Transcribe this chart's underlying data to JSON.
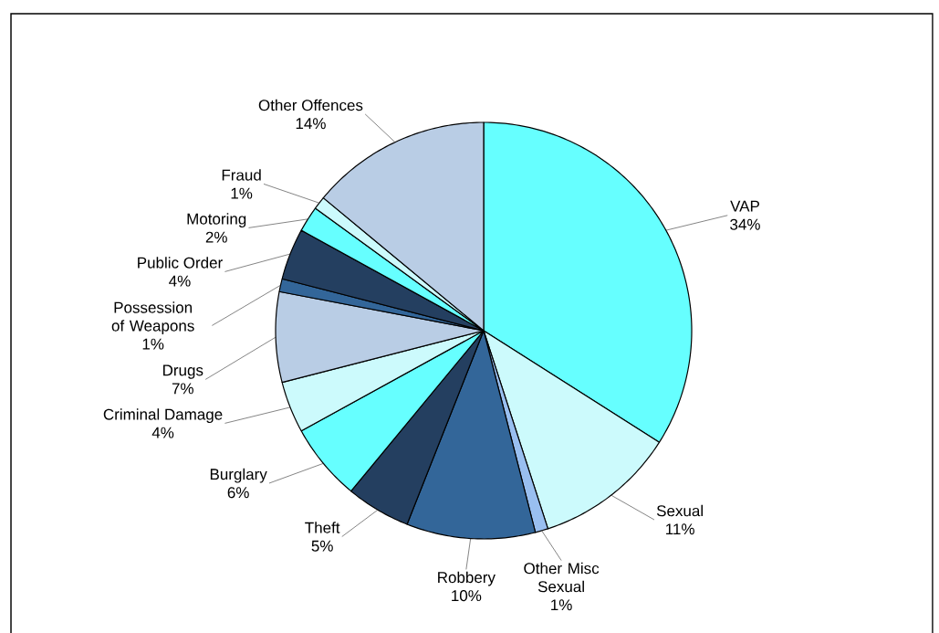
{
  "chart_data": {
    "type": "pie",
    "categories": [
      "VAP",
      "Sexual",
      "Other Misc Sexual",
      "Robbery",
      "Theft",
      "Burglary",
      "Criminal Damage",
      "Drugs",
      "Possession of Weapons",
      "Public Order",
      "Motoring",
      "Fraud",
      "Other Offences"
    ],
    "values": [
      34,
      11,
      1,
      10,
      5,
      6,
      4,
      7,
      1,
      4,
      2,
      1,
      14
    ],
    "value_labels": [
      "34%",
      "11%",
      "1%",
      "10%",
      "5%",
      "6%",
      "4%",
      "7%",
      "1%",
      "4%",
      "2%",
      "1%",
      "14%"
    ],
    "colors": [
      "#66ffff",
      "#ccfafc",
      "#99bff0",
      "#336699",
      "#243f60",
      "#66ffff",
      "#ccfafc",
      "#b9cde5",
      "#336699",
      "#243f60",
      "#66ffff",
      "#ccfafc",
      "#b9cde5"
    ]
  }
}
